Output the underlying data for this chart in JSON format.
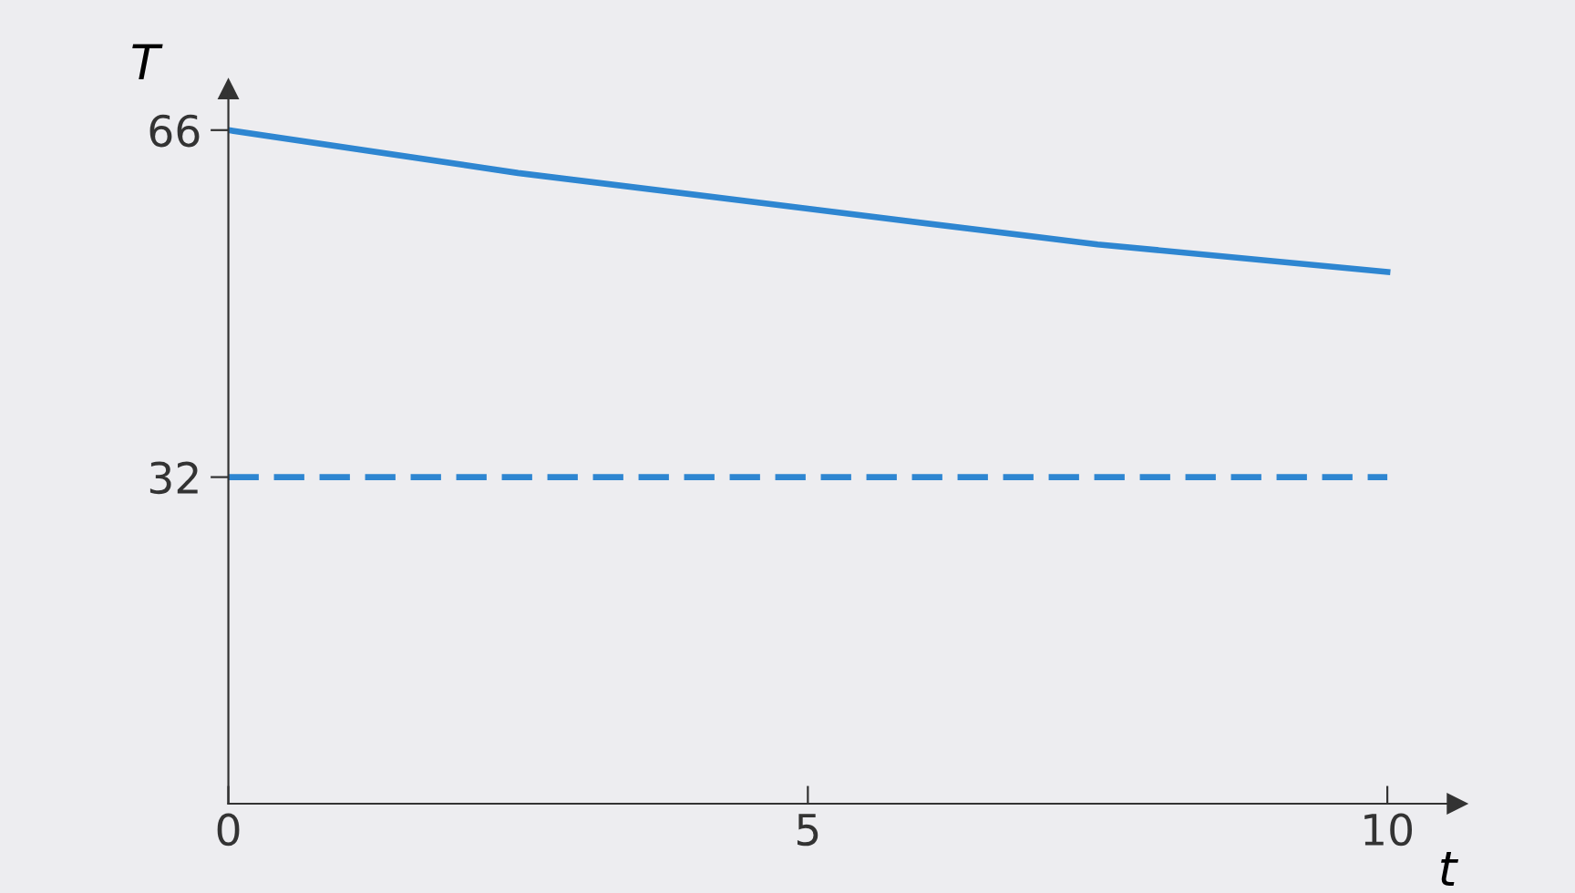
{
  "chart_data": {
    "type": "line",
    "xlabel": "t",
    "ylabel": "T",
    "series": [
      {
        "color": "#2e86d1",
        "x": [
          0,
          2.5,
          5,
          7.5,
          10
        ],
        "values": [
          66,
          61.8,
          58.3,
          54.8,
          52.1
        ],
        "line_style": "solid"
      },
      {
        "color": "#2e86d1",
        "x": [
          0,
          10
        ],
        "values": [
          32,
          32
        ],
        "line_style": "dashed"
      }
    ],
    "xlim": [
      0,
      10.6
    ],
    "ylim": [
      0,
      70
    ],
    "xticks": [
      0,
      5,
      10
    ],
    "yticks": [
      32,
      66
    ],
    "grid": false,
    "legend": false,
    "marker": "none"
  }
}
